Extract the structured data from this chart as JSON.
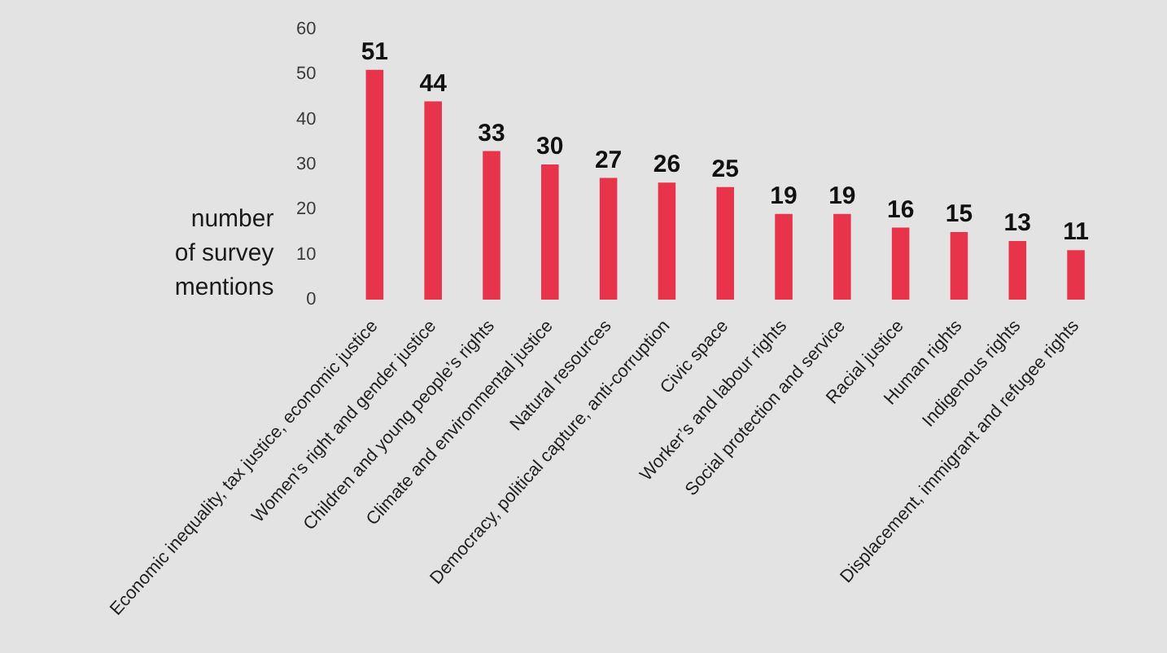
{
  "chart_data": {
    "type": "bar",
    "ylabel": "number of survey mentions",
    "categories": [
      "Economic inequality, tax justice, economic justice",
      "Women’s right and gender justice",
      "Children and young people’s rights",
      "Climate and environmental justice",
      "Natural resources",
      "Democracy, political capture, anti-corruption",
      "Civic space",
      "Worker’s and labour rights",
      "Social protection and service",
      "Racial justice",
      "Human rights",
      "Indigenous rights",
      "Displacement, immigrant and refugee rights"
    ],
    "values": [
      51,
      44,
      33,
      30,
      27,
      26,
      25,
      19,
      19,
      16,
      15,
      13,
      11
    ],
    "color": "#e8344b",
    "ylim": [
      0,
      60
    ],
    "yticks": [
      0,
      10,
      20,
      30,
      40,
      50,
      60
    ],
    "grid": false,
    "legend": false,
    "data_labels": true
  }
}
